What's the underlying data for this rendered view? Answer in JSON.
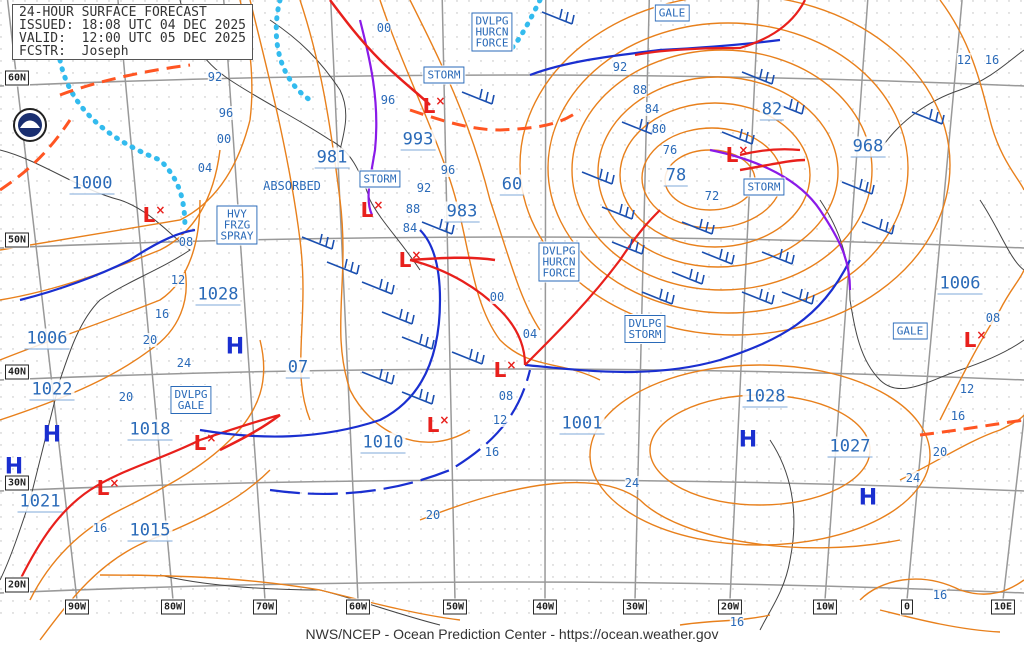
{
  "header": {
    "title": "24-HOUR SURFACE FORECAST",
    "issued": "ISSUED: 18:08 UTC 04 DEC 2025",
    "valid": "VALID:  12:00 UTC 05 DEC 2025",
    "forecaster": "FCSTR:  Joseph"
  },
  "footer": "NWS/NCEP - Ocean Prediction Center - https://ocean.weather.gov",
  "logo": "NOAA",
  "colors": {
    "isobar": "#e8801c",
    "cold_front": "#1a2fd0",
    "warm_front": "#e8201c",
    "occluded_front": "#8a1ae8",
    "ice_edge": "#33bbee",
    "label": "#2a6ab8"
  },
  "lat_labels": [
    "60N",
    "50N",
    "40N",
    "30N",
    "20N"
  ],
  "lon_labels": [
    "90W",
    "80W",
    "70W",
    "60W",
    "50W",
    "40W",
    "30W",
    "20W",
    "10W",
    "0",
    "10E"
  ],
  "central_pressures": [
    "1000",
    "981",
    "993",
    "983",
    "60",
    "78",
    "82",
    "968",
    "1028",
    "1006",
    "07",
    "1022",
    "1018",
    "1010",
    "1001",
    "1028",
    "1027",
    "1006",
    "1021",
    "1015"
  ],
  "isobar_labels": [
    "92",
    "96",
    "00",
    "04",
    "08",
    "12",
    "16",
    "20",
    "24",
    "20",
    "16",
    "00",
    "96",
    "92",
    "88",
    "84",
    "96",
    "00",
    "04",
    "08",
    "12",
    "16",
    "20",
    "24",
    "92",
    "88",
    "84",
    "80",
    "76",
    "72",
    "24",
    "20",
    "16",
    "12",
    "08",
    "12",
    "16",
    "16",
    "16"
  ],
  "lows": [
    "L",
    "L",
    "L",
    "L",
    "L",
    "L",
    "L",
    "L",
    "L",
    "L"
  ],
  "highs": [
    "H",
    "H",
    "H",
    "H",
    "H"
  ],
  "warnings": [
    "STORM",
    "DVLPG\nHURCN\nFORCE",
    "GALE",
    "STORM",
    "HVY\nFRZG\nSPRAY",
    "DVLPG\nHURCN\nFORCE",
    "DVLPG\nSTORM",
    "STORM",
    "GALE",
    "DVLPG\nGALE"
  ],
  "notes": [
    "ABSORBED"
  ]
}
